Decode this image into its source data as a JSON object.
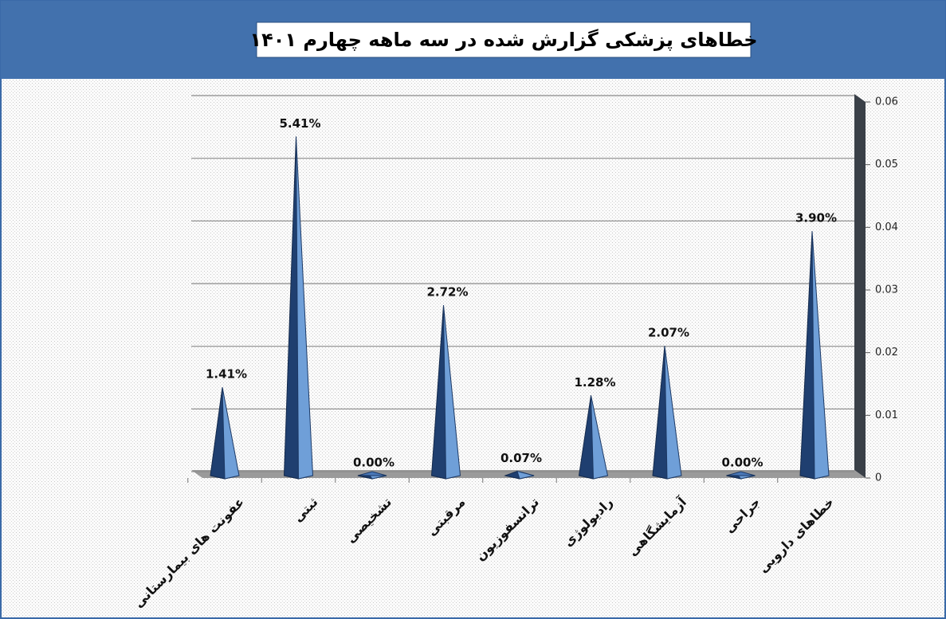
{
  "chart_data": {
    "type": "bar3d-pyramid",
    "title": "خطاهای پزشکی گزارش شده در سه ماهه چهارم ۱۴۰۱",
    "categories": [
      "عفونت های بیمارستانی",
      "ثبتی",
      "تشخیصی",
      "مرقبتی",
      "ترانسفوزیون",
      "رادیولوژی",
      "آزمایشگاهی",
      "جراحی",
      "خطاهای دارویی"
    ],
    "values": [
      0.0141,
      0.0541,
      0,
      0.0272,
      0.0007,
      0.0128,
      0.0207,
      0,
      0.039
    ],
    "value_labels": [
      "1.41%",
      "5.41%",
      "0.00%",
      "2.72%",
      "0.07%",
      "1.28%",
      "2.07%",
      "0.00%",
      "3.90%"
    ],
    "color": "#6f9fd8",
    "ylim": [
      0,
      0.06
    ],
    "yticks": [
      0,
      0.01,
      0.02,
      0.03,
      0.04,
      0.05,
      0.06
    ],
    "grid": true
  }
}
